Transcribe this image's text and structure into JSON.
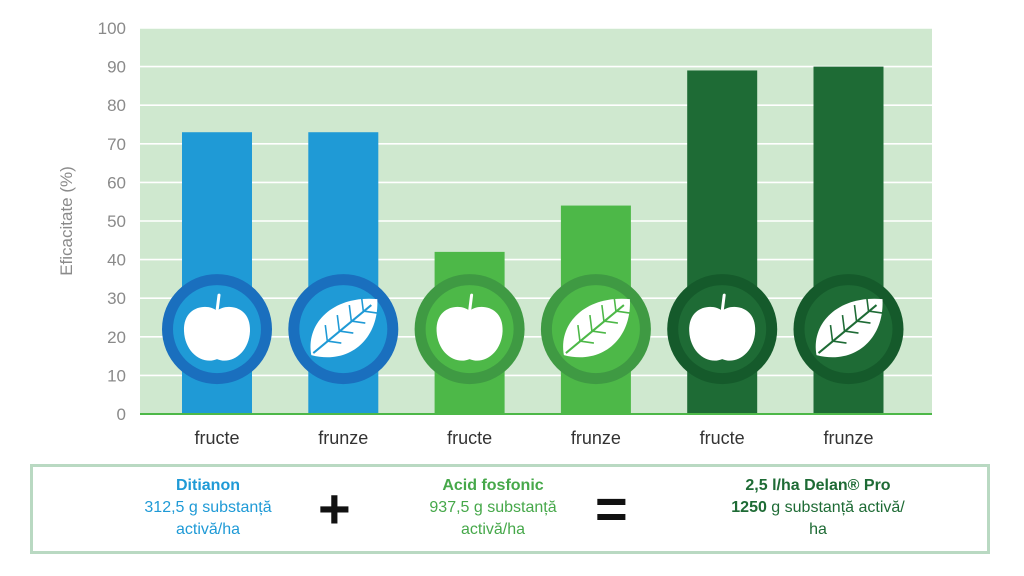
{
  "chart_data": {
    "type": "bar",
    "ylabel": "Eficacitate (%)",
    "ylim": [
      0,
      100
    ],
    "yticks": [
      0,
      10,
      20,
      30,
      40,
      50,
      60,
      70,
      80,
      90,
      100
    ],
    "grid": true,
    "categories": [
      "fructe",
      "frunze",
      "fructe",
      "frunze",
      "fructe",
      "frunze"
    ],
    "values": [
      73,
      73,
      42,
      54,
      89,
      90
    ],
    "bar_colors": [
      "#1f9ad6",
      "#1f9ad6",
      "#4db848",
      "#4db848",
      "#1e6b35",
      "#1e6b35"
    ],
    "icon_ring_colors": [
      "#1a6fbe",
      "#1a6fbe",
      "#3f9a43",
      "#3f9a43",
      "#155a2b",
      "#155a2b"
    ],
    "icons": [
      "apple-icon",
      "leaf-icon",
      "apple-icon",
      "leaf-icon",
      "apple-icon",
      "leaf-icon"
    ],
    "background_color": "#cfe8cf"
  },
  "legend": {
    "ditianon": {
      "title": "Ditianon",
      "line1": "312,5 g substanță",
      "line2": "activă/ha"
    },
    "plus": "+",
    "acid": {
      "title": "Acid fosfonic",
      "line1": "937,5 g substanță",
      "line2": "activă/ha"
    },
    "equals": "=",
    "delan": {
      "title": "2,5 l/ha Delan® Pro",
      "line2_bold": "1250",
      "line2_rest": " g substanță activă/",
      "line3": "ha"
    }
  }
}
